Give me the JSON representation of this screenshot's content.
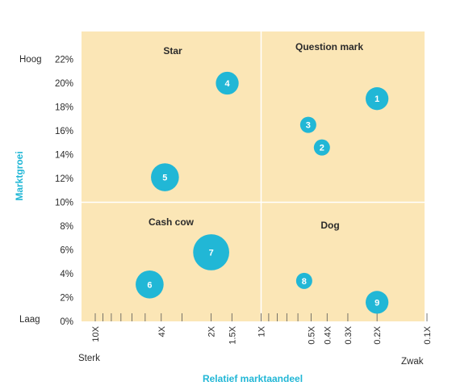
{
  "colors": {
    "background": "#fbe6b6",
    "bubble": "#21b7d6",
    "axis_title": "#21b7d6",
    "text": "#2b2b2b",
    "divider": "#ffffff",
    "tick": "#555555"
  },
  "chart_data": {
    "type": "scatter",
    "title": "",
    "xlabel": "Relatief marktaandeel",
    "ylabel": "Marktgroei",
    "x_scale": "log-reversed",
    "xlim": [
      10,
      0.1
    ],
    "ylim": [
      0,
      22
    ],
    "x_tick_labels": [
      {
        "value": 10,
        "label": "10X"
      },
      {
        "value": 4,
        "label": "4X"
      },
      {
        "value": 2,
        "label": "2X"
      },
      {
        "value": 1.5,
        "label": "1.5X"
      },
      {
        "value": 1,
        "label": "1X"
      },
      {
        "value": 0.5,
        "label": "0.5X"
      },
      {
        "value": 0.4,
        "label": "0.4X"
      },
      {
        "value": 0.3,
        "label": "0.3X"
      },
      {
        "value": 0.2,
        "label": "0.2X"
      },
      {
        "value": 0.1,
        "label": "0.1X"
      }
    ],
    "x_minor_ticks": [
      9,
      8,
      7,
      6,
      5,
      3,
      0.9,
      0.8,
      0.7,
      0.6
    ],
    "y_tick_labels": [
      {
        "value": 0,
        "label": "0%"
      },
      {
        "value": 2,
        "label": "2%"
      },
      {
        "value": 4,
        "label": "4%"
      },
      {
        "value": 6,
        "label": "6%"
      },
      {
        "value": 8,
        "label": "8%"
      },
      {
        "value": 10,
        "label": "10%"
      },
      {
        "value": 12,
        "label": "12%"
      },
      {
        "value": 14,
        "label": "14%"
      },
      {
        "value": 16,
        "label": "16%"
      },
      {
        "value": 18,
        "label": "18%"
      },
      {
        "value": 20,
        "label": "20%"
      },
      {
        "value": 22,
        "label": "22%"
      }
    ],
    "dividers": {
      "x": 1,
      "y": 10
    },
    "quadrants": [
      "Star",
      "Question mark",
      "Cash cow",
      "Dog"
    ],
    "y_end_labels": {
      "top": "Hoog",
      "bottom": "Laag"
    },
    "x_end_labels": {
      "left": "Sterk",
      "right": "Zwak"
    },
    "grid": false,
    "points": [
      {
        "label": "1",
        "x": 0.2,
        "y": 18.7,
        "size": 2
      },
      {
        "label": "2",
        "x": 0.43,
        "y": 14.6,
        "size": 1
      },
      {
        "label": "3",
        "x": 0.52,
        "y": 16.5,
        "size": 1
      },
      {
        "label": "4",
        "x": 1.6,
        "y": 20.0,
        "size": 2
      },
      {
        "label": "5",
        "x": 3.8,
        "y": 12.1,
        "size": 3
      },
      {
        "label": "6",
        "x": 4.7,
        "y": 3.1,
        "size": 3
      },
      {
        "label": "7",
        "x": 2.0,
        "y": 5.8,
        "size": 5
      },
      {
        "label": "8",
        "x": 0.55,
        "y": 3.4,
        "size": 1
      },
      {
        "label": "9",
        "x": 0.2,
        "y": 1.6,
        "size": 2
      }
    ]
  }
}
